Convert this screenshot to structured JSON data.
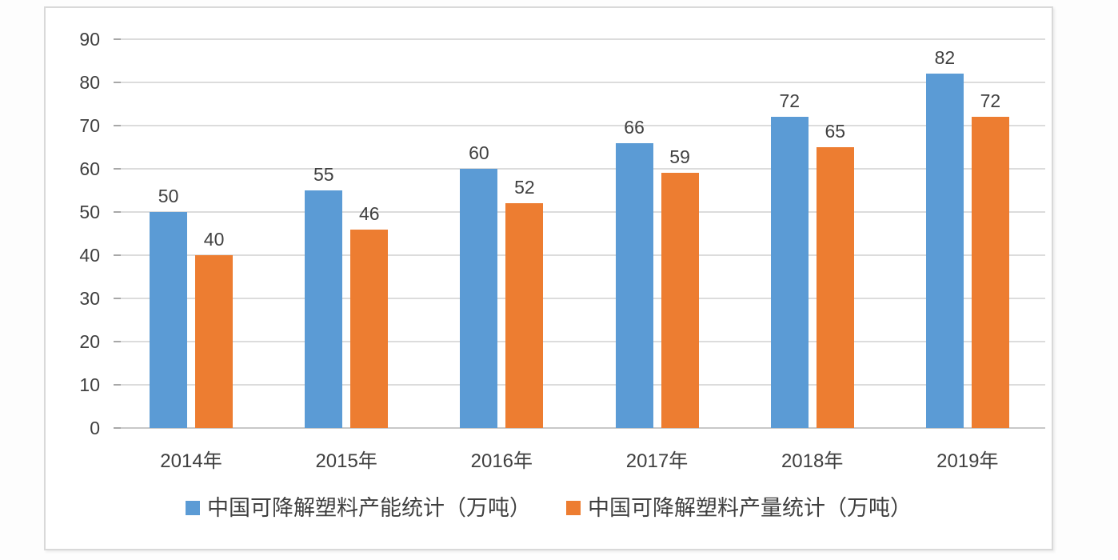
{
  "chart_data": {
    "type": "bar",
    "title": "",
    "xlabel": "",
    "ylabel": "",
    "categories": [
      "2014年",
      "2015年",
      "2016年",
      "2017年",
      "2018年",
      "2019年"
    ],
    "series": [
      {
        "name": "中国可降解塑料产能统计（万吨）",
        "color": "#5B9BD5",
        "values": [
          50,
          55,
          60,
          66,
          72,
          82
        ]
      },
      {
        "name": "中国可降解塑料产量统计（万吨）",
        "color": "#ED7D31",
        "values": [
          40,
          46,
          52,
          59,
          65,
          72
        ]
      }
    ],
    "ylim": [
      0,
      90
    ],
    "yticks": [
      0,
      10,
      20,
      30,
      40,
      50,
      60,
      70,
      80,
      90
    ],
    "grid": true,
    "data_labels": true,
    "legend_position": "bottom"
  },
  "colors": {
    "series_blue": "#5B9BD5",
    "series_orange": "#ED7D31",
    "gridline": "#DCDCDC",
    "baseline": "#C8C8C8",
    "tick": "#A8A8A8",
    "text": "#404040",
    "frame_border": "#D9D9D9",
    "background": "#FFFFFF"
  }
}
